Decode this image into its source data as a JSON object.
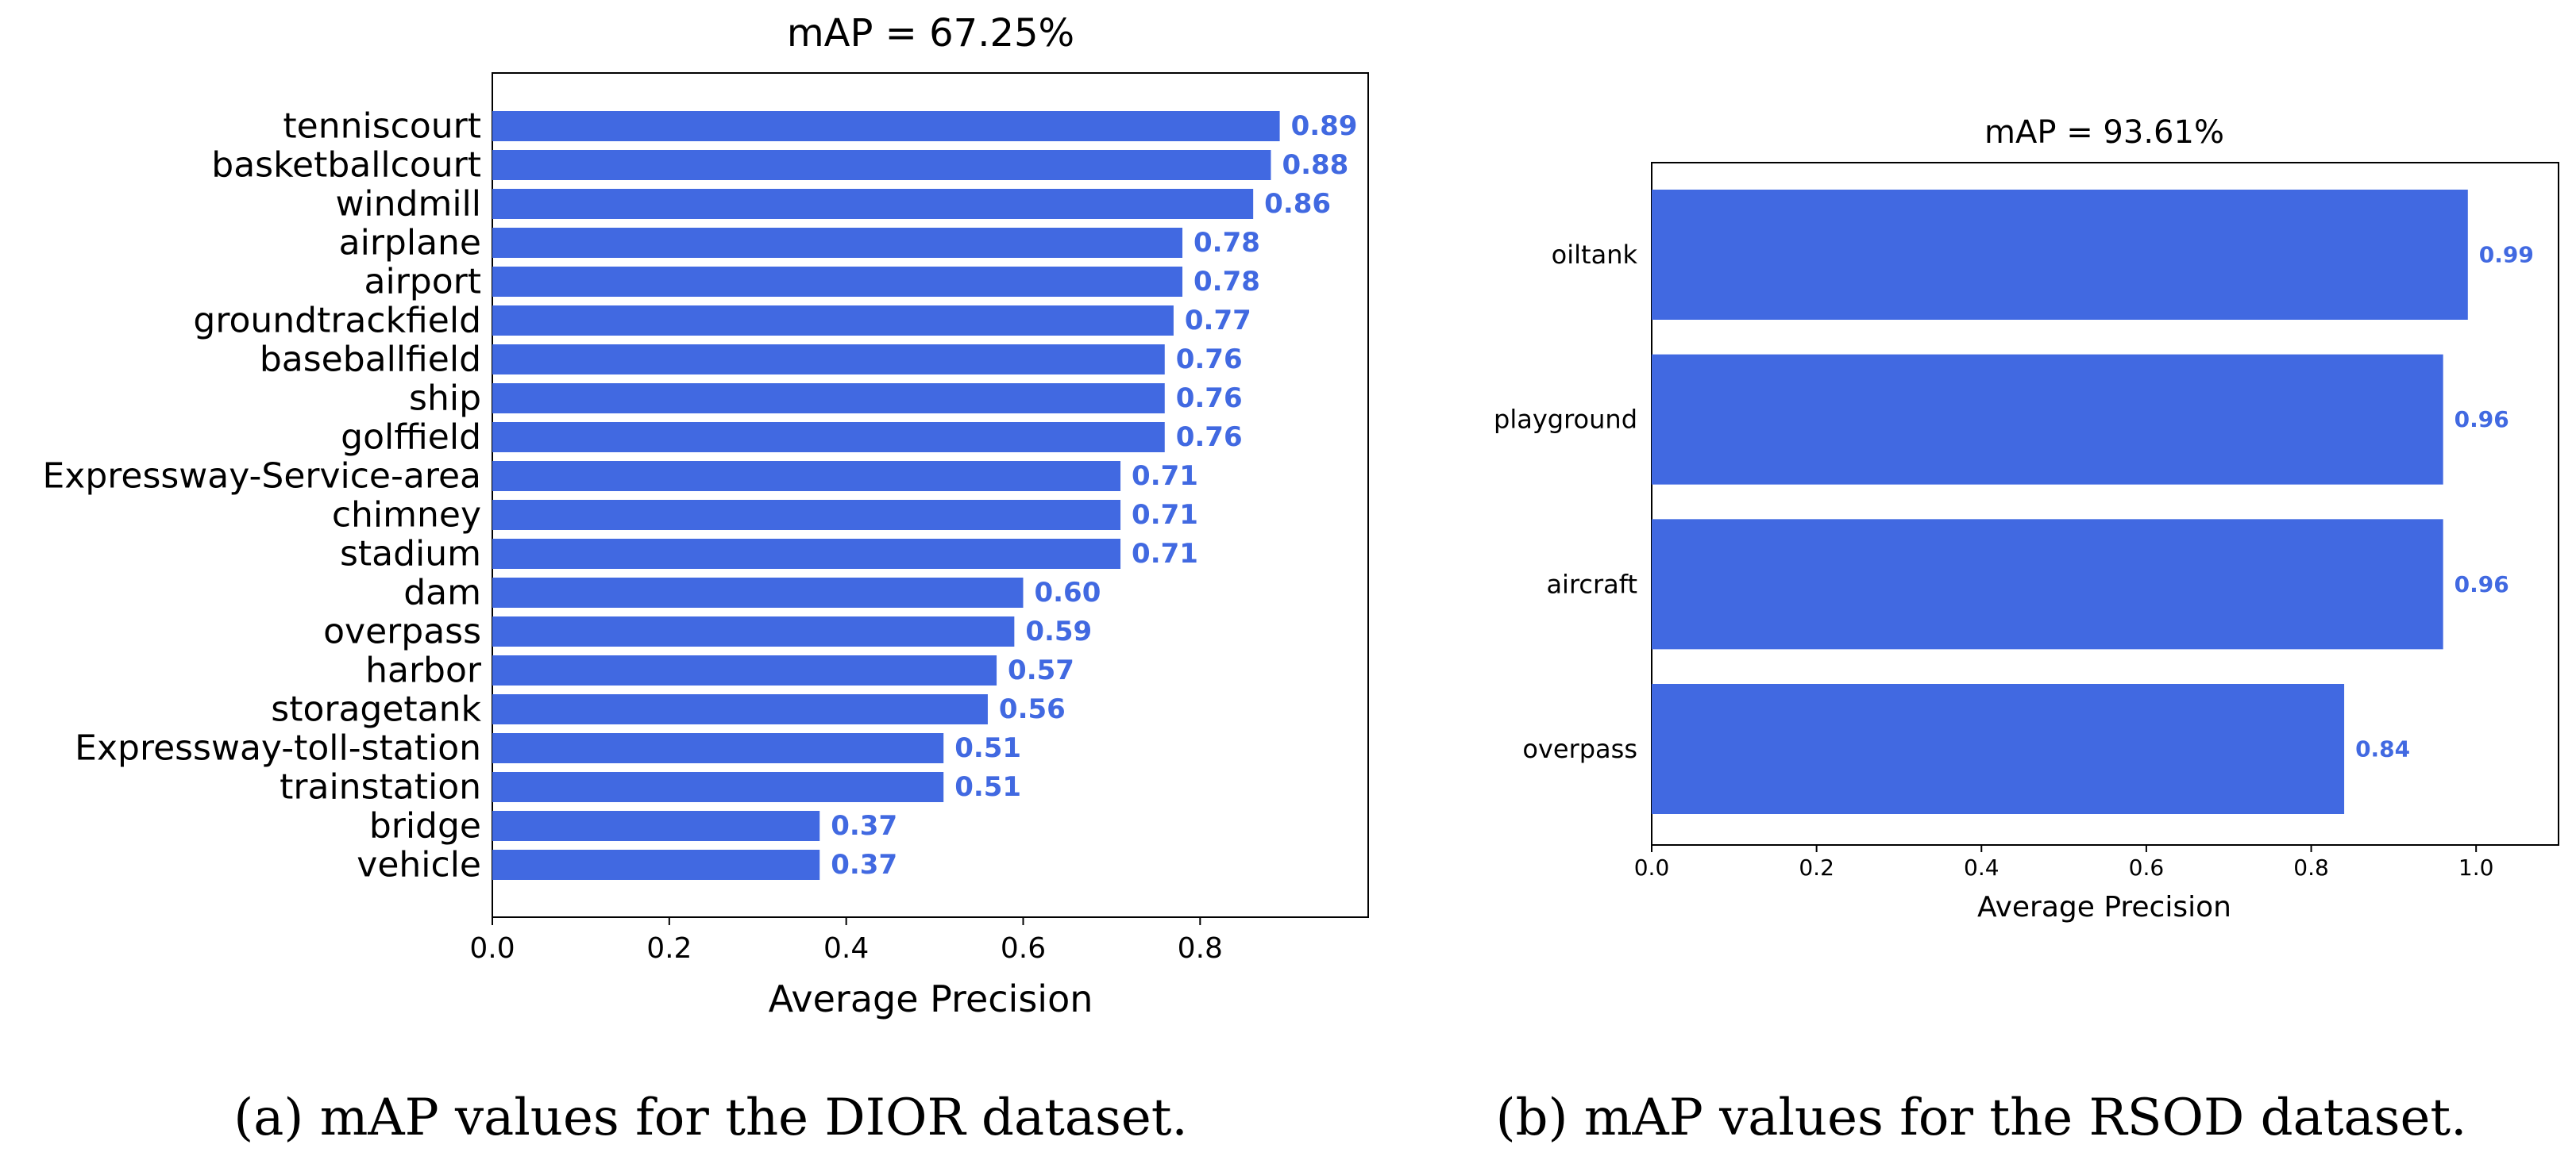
{
  "chart_data": [
    {
      "type": "bar",
      "orientation": "horizontal",
      "title": "mAP = 67.25%",
      "xlabel": "Average Precision",
      "ylabel": "",
      "xlim": [
        0,
        0.99
      ],
      "xticks": [
        "0.0",
        "0.2",
        "0.4",
        "0.6",
        "0.8"
      ],
      "categories": [
        "tenniscourt",
        "basketballcourt",
        "windmill",
        "airplane",
        "airport",
        "groundtrackfield",
        "baseballfield",
        "ship",
        "golffield",
        "Expressway-Service-area",
        "chimney",
        "stadium",
        "dam",
        "overpass",
        "harbor",
        "storagetank",
        "Expressway-toll-station",
        "trainstation",
        "bridge",
        "vehicle"
      ],
      "values": [
        0.89,
        0.88,
        0.86,
        0.78,
        0.78,
        0.77,
        0.76,
        0.76,
        0.76,
        0.71,
        0.71,
        0.71,
        0.6,
        0.59,
        0.57,
        0.56,
        0.51,
        0.51,
        0.37,
        0.37
      ],
      "value_labels": [
        "0.89",
        "0.88",
        "0.86",
        "0.78",
        "0.78",
        "0.77",
        "0.76",
        "0.76",
        "0.76",
        "0.71",
        "0.71",
        "0.71",
        "0.60",
        "0.59",
        "0.57",
        "0.56",
        "0.51",
        "0.51",
        "0.37",
        "0.37"
      ],
      "bar_color": "#4169e1",
      "label_color": "#4169e1",
      "grid": false,
      "caption": "(a) mAP values for the DIOR dataset."
    },
    {
      "type": "bar",
      "orientation": "horizontal",
      "title": "mAP = 93.61%",
      "xlabel": "Average Precision",
      "ylabel": "",
      "xlim": [
        0,
        1.1
      ],
      "xticks": [
        "0.0",
        "0.2",
        "0.4",
        "0.6",
        "0.8",
        "1.0"
      ],
      "categories": [
        "oiltank",
        "playground",
        "aircraft",
        "overpass"
      ],
      "values": [
        0.99,
        0.96,
        0.96,
        0.84
      ],
      "value_labels": [
        "0.99",
        "0.96",
        "0.96",
        "0.84"
      ],
      "bar_color": "#4169e1",
      "label_color": "#4169e1",
      "grid": false,
      "caption": "(b) mAP values for the RSOD dataset."
    }
  ]
}
